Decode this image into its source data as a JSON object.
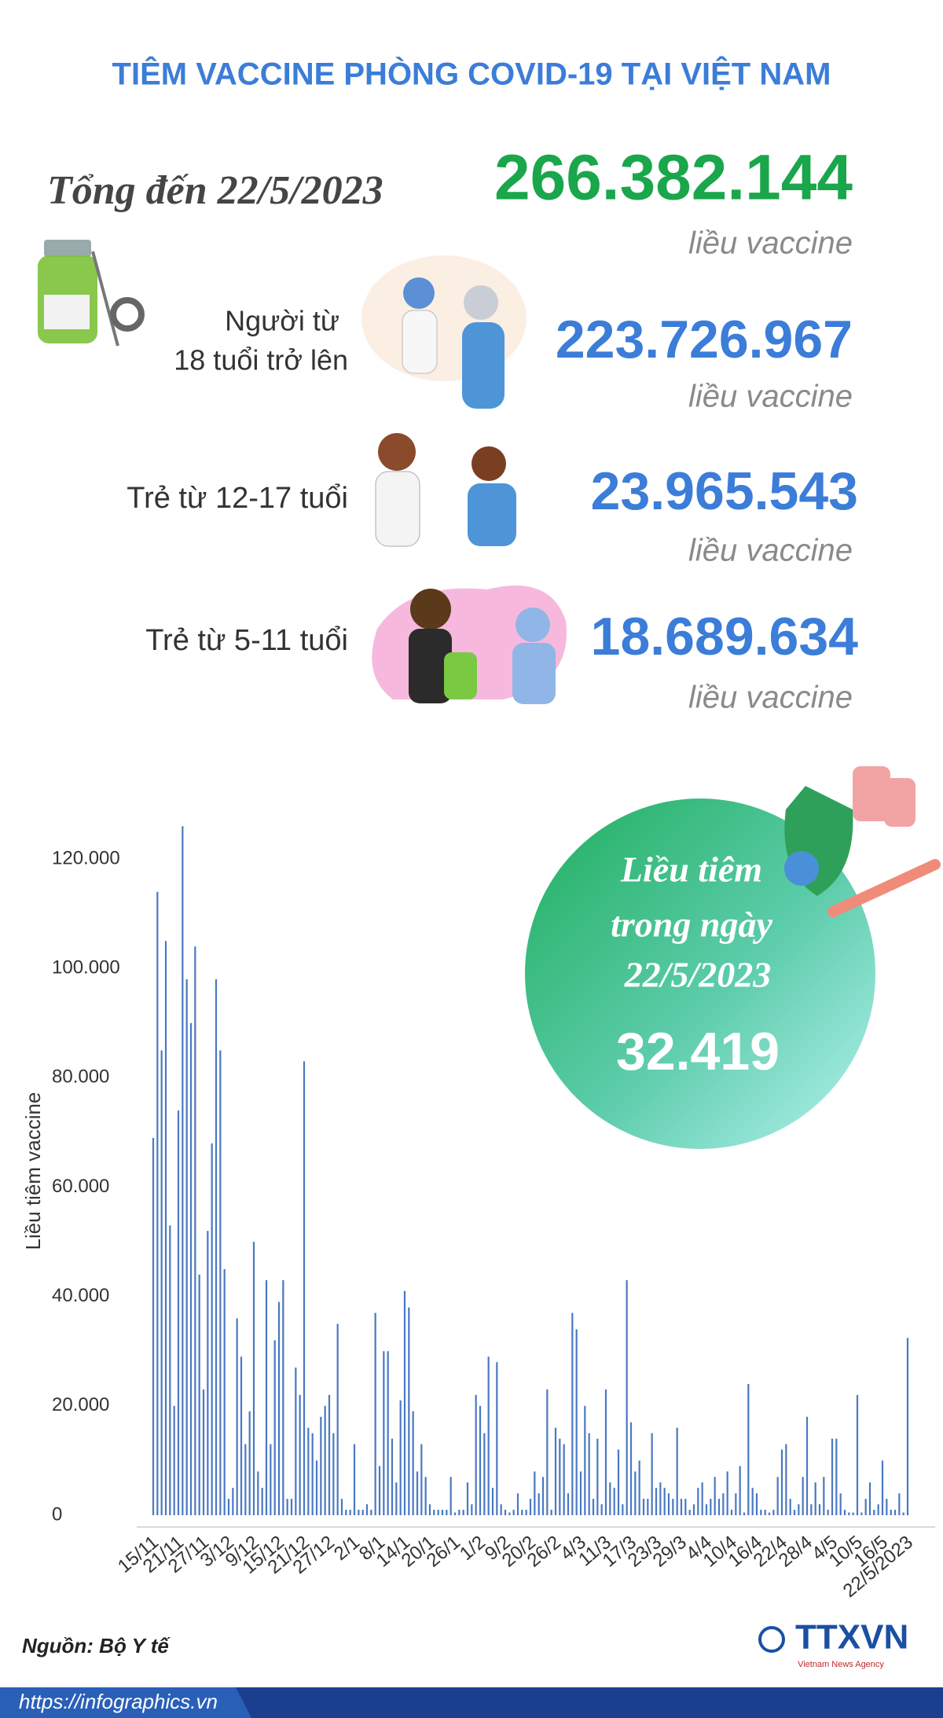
{
  "title": "TIÊM VACCINE PHÒNG COVID-19 TẠI VIỆT NAM",
  "total": {
    "label": "Tổng đến 22/5/2023",
    "value": "266.382.144",
    "unit": "liều vaccine"
  },
  "groups": [
    {
      "label": [
        "Người từ",
        "18 tuổi trở lên"
      ],
      "value": "223.726.967",
      "unit": "liều vaccine"
    },
    {
      "label": [
        "Trẻ từ 12-17 tuổi"
      ],
      "value": "23.965.543",
      "unit": "liều vaccine"
    },
    {
      "label": [
        "Trẻ từ 5-11 tuổi"
      ],
      "value": "18.689.634",
      "unit": "liều vaccine"
    }
  ],
  "highlight": {
    "lines": [
      "Liều tiêm",
      "trong ngày",
      "22/5/2023"
    ],
    "value": "32.419"
  },
  "chart_data": {
    "type": "bar",
    "y_label": "Liều tiêm vaccine",
    "color": "#4a78c2",
    "ylim": [
      0,
      125000
    ],
    "yticks": [
      0,
      {
        "value": 20000,
        "label": "20.000"
      },
      {
        "value": 40000,
        "label": "40.000"
      },
      {
        "value": 60000,
        "label": "60.000"
      },
      {
        "value": 80000,
        "label": "80.000"
      },
      {
        "value": 100000,
        "label": "100.000"
      },
      {
        "value": 120000,
        "label": "120.000"
      }
    ],
    "categories": [
      "15/11",
      null,
      null,
      null,
      null,
      null,
      "21/11",
      null,
      null,
      null,
      null,
      null,
      "27/11",
      null,
      null,
      null,
      null,
      null,
      "3/12",
      null,
      null,
      null,
      null,
      null,
      "9/12",
      null,
      null,
      null,
      null,
      null,
      "15/12",
      null,
      null,
      null,
      null,
      null,
      "21/12",
      null,
      null,
      null,
      null,
      null,
      "27/12",
      null,
      null,
      null,
      null,
      null,
      "2/1",
      null,
      null,
      null,
      null,
      null,
      "8/1",
      null,
      null,
      null,
      null,
      null,
      "14/1",
      null,
      null,
      null,
      null,
      null,
      "20/1",
      null,
      null,
      null,
      null,
      null,
      "26/1",
      null,
      null,
      null,
      null,
      null,
      "1/2",
      null,
      null,
      null,
      null,
      null,
      "9/2",
      null,
      null,
      null,
      null,
      null,
      "20/2",
      null,
      null,
      null,
      null,
      null,
      "26/2",
      null,
      null,
      null,
      null,
      null,
      "4/3",
      null,
      null,
      null,
      null,
      null,
      "11/3",
      null,
      null,
      null,
      null,
      null,
      "17/3",
      null,
      null,
      null,
      null,
      null,
      "23/3",
      null,
      null,
      null,
      null,
      null,
      "29/3",
      null,
      null,
      null,
      null,
      null,
      "4/4",
      null,
      null,
      null,
      null,
      null,
      "10/4",
      null,
      null,
      null,
      null,
      null,
      "16/4",
      null,
      null,
      null,
      null,
      null,
      "22/4",
      null,
      null,
      null,
      null,
      null,
      "28/4",
      null,
      null,
      null,
      null,
      null,
      "4/5",
      null,
      null,
      null,
      null,
      null,
      "10/5",
      null,
      null,
      null,
      null,
      null,
      "16/5",
      null,
      null,
      null,
      null,
      null,
      "22/5/2023"
    ],
    "values": [
      69000,
      114000,
      85000,
      105000,
      53000,
      20000,
      74000,
      126000,
      98000,
      90000,
      104000,
      44000,
      23000,
      52000,
      68000,
      98000,
      85000,
      45000,
      3000,
      5000,
      36000,
      29000,
      13000,
      19000,
      50000,
      8000,
      5000,
      43000,
      13000,
      32000,
      39000,
      43000,
      3000,
      3000,
      27000,
      22000,
      83000,
      16000,
      15000,
      10000,
      18000,
      20000,
      22000,
      15000,
      35000,
      3000,
      1000,
      1000,
      13000,
      1000,
      1000,
      2000,
      1000,
      37000,
      9000,
      30000,
      30000,
      14000,
      6000,
      21000,
      41000,
      38000,
      19000,
      8000,
      13000,
      7000,
      2000,
      1000,
      1000,
      1000,
      1000,
      7000,
      500,
      1000,
      1000,
      6000,
      2000,
      22000,
      20000,
      15000,
      29000,
      5000,
      28000,
      2000,
      1000,
      500,
      1000,
      4000,
      1000,
      1000,
      3000,
      8000,
      4000,
      7000,
      23000,
      1000,
      16000,
      14000,
      13000,
      4000,
      37000,
      34000,
      8000,
      20000,
      15000,
      3000,
      14000,
      2000,
      23000,
      6000,
      5000,
      12000,
      2000,
      43000,
      17000,
      8000,
      10000,
      3000,
      3000,
      15000,
      5000,
      6000,
      5000,
      4000,
      3000,
      16000,
      3000,
      3000,
      1000,
      2000,
      5000,
      6000,
      2000,
      3000,
      7000,
      3000,
      4000,
      8000,
      1000,
      4000,
      9000,
      500,
      24000,
      5000,
      4000,
      1000,
      1000,
      500,
      1000,
      7000,
      12000,
      13000,
      3000,
      1000,
      2000,
      7000,
      18000,
      2000,
      6000,
      2000,
      7000,
      1000,
      14000,
      14000,
      4000,
      1000,
      500,
      500,
      22000,
      500,
      3000,
      6000,
      1000,
      2000,
      10000,
      3000,
      1000,
      1000,
      4000,
      500,
      32419
    ]
  },
  "source": "Nguồn: Bộ Y tế",
  "url": "https://infographics.vn",
  "logo": "TTXVN",
  "logo_sub": "Vietnam News Agency"
}
